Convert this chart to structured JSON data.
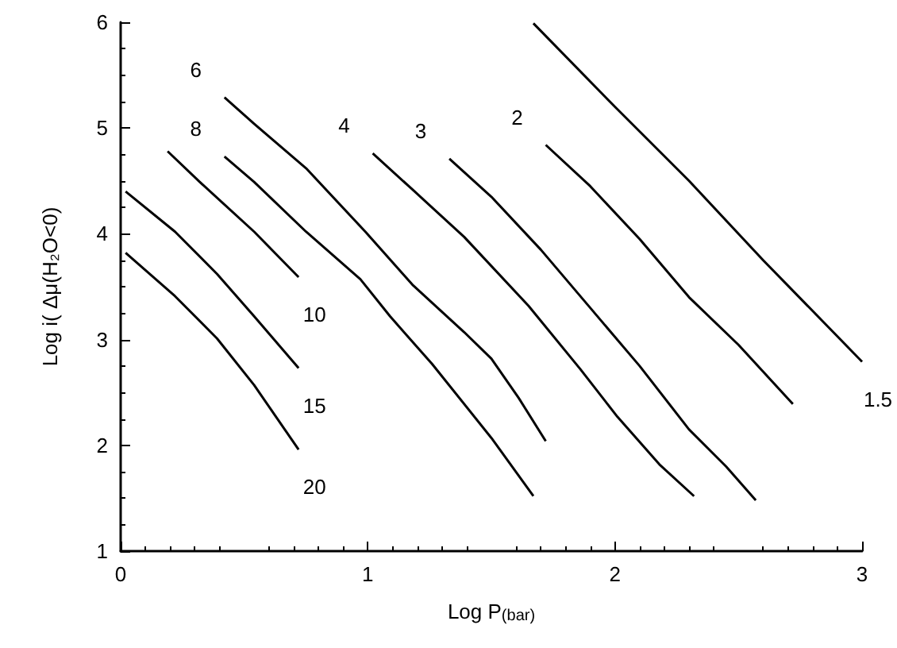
{
  "chart_data": {
    "type": "line",
    "xlabel": "Log P$_{(bar)}$",
    "ylabel": "Log i( Δμ(H₂O<0)",
    "xlim": [
      0,
      3
    ],
    "xticks": [
      0,
      1,
      2,
      3
    ],
    "ylim": [
      1,
      6
    ],
    "yticks": [
      1,
      2,
      3,
      4,
      5,
      6
    ],
    "grid": false,
    "legend": false,
    "marker": "none",
    "line_style": "solid",
    "series": [
      {
        "name": "20",
        "color": "#000000",
        "x": [
          0.02,
          0.22,
          0.39,
          0.54,
          0.72
        ],
        "values": [
          3.82,
          3.41,
          3.01,
          2.57,
          1.96
        ]
      },
      {
        "name": "15",
        "color": "#000000",
        "x": [
          0.02,
          0.22,
          0.39,
          0.54,
          0.72
        ],
        "values": [
          4.4,
          4.02,
          3.62,
          3.22,
          2.73
        ]
      },
      {
        "name": "10",
        "color": "#000000",
        "x": [
          0.19,
          0.32,
          0.54,
          0.72
        ],
        "values": [
          4.78,
          4.49,
          4.02,
          3.59
        ]
      },
      {
        "name": "8",
        "color": "#000000",
        "x": [
          0.42,
          0.54,
          0.75,
          0.97,
          1.09,
          1.26,
          1.5,
          1.67
        ],
        "values": [
          4.73,
          4.49,
          4.02,
          3.57,
          3.22,
          2.77,
          2.07,
          1.52
        ]
      },
      {
        "name": "6",
        "color": "#000000",
        "x": [
          0.42,
          0.54,
          0.75,
          0.99,
          1.18,
          1.39,
          1.5,
          1.61,
          1.72
        ],
        "values": [
          5.29,
          5.04,
          4.62,
          4.02,
          3.52,
          3.07,
          2.82,
          2.45,
          2.04
        ]
      },
      {
        "name": "4",
        "color": "#000000",
        "x": [
          1.02,
          1.18,
          1.39,
          1.65,
          1.86,
          2.01,
          2.18,
          2.32
        ],
        "values": [
          4.76,
          4.42,
          3.97,
          3.32,
          2.72,
          2.27,
          1.82,
          1.52
        ]
      },
      {
        "name": "3",
        "color": "#000000",
        "x": [
          1.33,
          1.5,
          1.7,
          1.9,
          2.1,
          2.3,
          2.45,
          2.57
        ],
        "values": [
          4.71,
          4.35,
          3.85,
          3.3,
          2.75,
          2.15,
          1.8,
          1.48
        ]
      },
      {
        "name": "2",
        "color": "#000000",
        "x": [
          1.72,
          1.9,
          2.1,
          2.3,
          2.5,
          2.72
        ],
        "values": [
          4.84,
          4.45,
          3.95,
          3.4,
          2.95,
          2.39
        ]
      },
      {
        "name": "1.5",
        "color": "#000000",
        "x": [
          1.67,
          2.0,
          2.3,
          2.6,
          3.0
        ],
        "values": [
          5.99,
          5.2,
          4.5,
          3.75,
          2.79
        ]
      }
    ]
  }
}
